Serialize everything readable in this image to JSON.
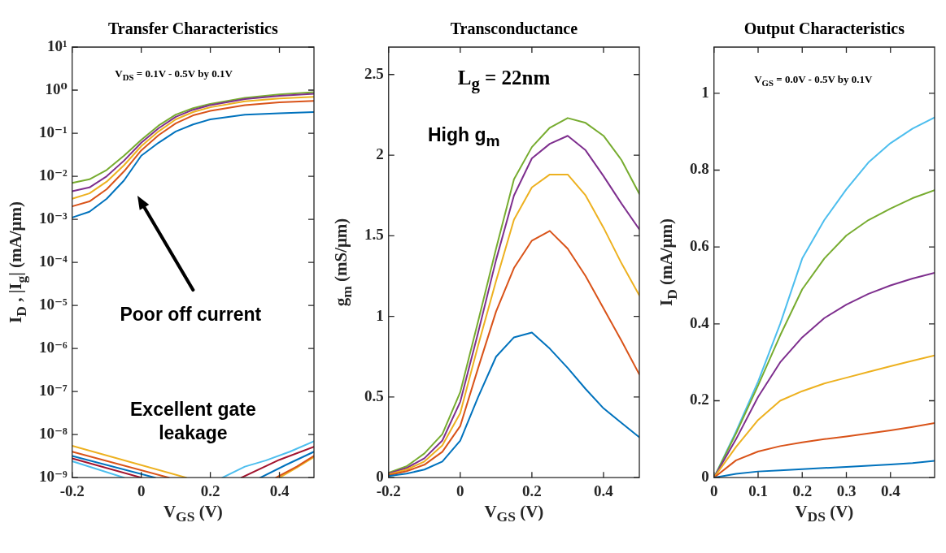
{
  "chart_data": [
    {
      "type": "line",
      "title": "Transfer Characteristics",
      "xlabel": "V$_{GS}$ (V)",
      "ylabel": "I$_{D}$ , |I$_{g}$| (mA/μm)",
      "log": "y",
      "xlim": [
        -0.2,
        0.5
      ],
      "xticks": [
        -0.2,
        0,
        0.2,
        0.4
      ],
      "ylim": [
        1e-09,
        10
      ],
      "yticks": [
        {
          "value": 1e-09,
          "label": "10⁻⁹"
        },
        {
          "value": 1e-08,
          "label": "10⁻⁸"
        },
        {
          "value": 1e-07,
          "label": "10⁻⁷"
        },
        {
          "value": 1e-06,
          "label": "10⁻⁶"
        },
        {
          "value": 1e-05,
          "label": "10⁻⁵"
        },
        {
          "value": 0.0001,
          "label": "10⁻⁴"
        },
        {
          "value": 0.001,
          "label": "10⁻³"
        },
        {
          "value": 0.01,
          "label": "10⁻²"
        },
        {
          "value": 0.1,
          "label": "10⁻¹"
        },
        {
          "value": 1,
          "label": "10⁰"
        },
        {
          "value": 10,
          "label": "10¹"
        }
      ],
      "annotations": [
        "V$_{DS}$ = 0.1V - 0.5V by 0.1V",
        "Poor off current",
        "Excellent gate leakage"
      ],
      "series": [
        {
          "color": "#0072bd",
          "x": [
            -0.2,
            -0.15,
            -0.1,
            -0.05,
            0,
            0.05,
            0.1,
            0.15,
            0.2,
            0.3,
            0.4,
            0.5
          ],
          "values": [
            0.0011,
            0.0015,
            0.003,
            0.008,
            0.03,
            0.06,
            0.11,
            0.16,
            0.21,
            0.27,
            0.29,
            0.31
          ]
        },
        {
          "color": "#d95319",
          "x": [
            -0.2,
            -0.15,
            -0.1,
            -0.05,
            0,
            0.05,
            0.1,
            0.15,
            0.2,
            0.3,
            0.4,
            0.5
          ],
          "values": [
            0.002,
            0.0026,
            0.005,
            0.013,
            0.04,
            0.09,
            0.17,
            0.26,
            0.33,
            0.45,
            0.52,
            0.56
          ]
        },
        {
          "color": "#edb120",
          "x": [
            -0.2,
            -0.15,
            -0.1,
            -0.05,
            0,
            0.05,
            0.1,
            0.15,
            0.2,
            0.3,
            0.4,
            0.5
          ],
          "values": [
            0.003,
            0.004,
            0.0075,
            0.018,
            0.05,
            0.11,
            0.21,
            0.31,
            0.4,
            0.55,
            0.64,
            0.7
          ]
        },
        {
          "color": "#7e2f8e",
          "x": [
            -0.2,
            -0.15,
            -0.1,
            -0.05,
            0,
            0.05,
            0.1,
            0.15,
            0.2,
            0.3,
            0.4,
            0.5
          ],
          "values": [
            0.0045,
            0.0055,
            0.01,
            0.023,
            0.06,
            0.13,
            0.24,
            0.35,
            0.45,
            0.62,
            0.74,
            0.82
          ]
        },
        {
          "color": "#77ac30",
          "x": [
            -0.2,
            -0.15,
            -0.1,
            -0.05,
            0,
            0.05,
            0.1,
            0.15,
            0.2,
            0.3,
            0.4,
            0.5
          ],
          "values": [
            0.007,
            0.0085,
            0.014,
            0.03,
            0.07,
            0.15,
            0.27,
            0.38,
            0.48,
            0.66,
            0.8,
            0.9
          ]
        },
        {
          "color": "#4dbeee",
          "x": [
            -0.2,
            -0.05,
            0.1,
            0.235,
            0.3,
            0.36,
            0.43,
            0.5
          ],
          "values": [
            2.4e-09,
            1e-09,
            null,
            1e-09,
            1.8e-09,
            2.5e-09,
            4e-09,
            7e-09
          ]
        },
        {
          "color": "#a2142f",
          "x": [
            -0.2,
            0,
            0.15,
            0.29,
            0.4,
            0.5
          ],
          "values": [
            2.8e-09,
            1e-09,
            null,
            1e-09,
            2.6e-09,
            5.2e-09
          ]
        },
        {
          "color": "#0072bd",
          "x": [
            -0.2,
            0.04,
            0.2,
            0.345,
            0.42,
            0.5
          ],
          "values": [
            3.2e-09,
            1e-09,
            null,
            1e-09,
            2e-09,
            4e-09
          ]
        },
        {
          "color": "#d95319",
          "x": [
            -0.2,
            0.08,
            0.25,
            0.39,
            0.45,
            0.5
          ],
          "values": [
            4e-09,
            1e-09,
            null,
            1e-09,
            1.8e-09,
            3.2e-09
          ]
        },
        {
          "color": "#edb120",
          "x": [
            -0.2,
            0.13,
            0.3,
            0.4,
            0.45,
            0.5
          ],
          "values": [
            5.5e-09,
            1e-09,
            null,
            1e-09,
            1.7e-09,
            3e-09
          ]
        }
      ]
    },
    {
      "type": "line",
      "title": "Transconductance",
      "xlabel": "V$_{GS}$ (V)",
      "ylabel": "g$_{m}$ (mS/μm)",
      "xlim": [
        -0.2,
        0.5
      ],
      "xticks": [
        -0.2,
        0,
        0.2,
        0.4
      ],
      "ylim": [
        0,
        2.67
      ],
      "yticks": [
        0,
        0.5,
        1,
        1.5,
        2,
        2.5
      ],
      "annotations": [
        "L$_{g}$ = 22nm",
        "High g$_{m}$"
      ],
      "x": [
        -0.2,
        -0.15,
        -0.1,
        -0.05,
        0,
        0.05,
        0.1,
        0.15,
        0.2,
        0.25,
        0.3,
        0.35,
        0.4,
        0.45,
        0.5
      ],
      "series": [
        {
          "color": "#0072bd",
          "values": [
            0.01,
            0.025,
            0.05,
            0.1,
            0.23,
            0.5,
            0.75,
            0.87,
            0.9,
            0.8,
            0.68,
            0.55,
            0.43,
            0.34,
            0.25
          ]
        },
        {
          "color": "#d95319",
          "values": [
            0.015,
            0.04,
            0.08,
            0.16,
            0.32,
            0.68,
            1.03,
            1.3,
            1.47,
            1.53,
            1.42,
            1.25,
            1.05,
            0.85,
            0.64
          ]
        },
        {
          "color": "#edb120",
          "values": [
            0.02,
            0.05,
            0.1,
            0.2,
            0.4,
            0.82,
            1.22,
            1.6,
            1.8,
            1.88,
            1.88,
            1.75,
            1.55,
            1.33,
            1.13
          ]
        },
        {
          "color": "#7e2f8e",
          "values": [
            0.025,
            0.06,
            0.12,
            0.23,
            0.47,
            0.9,
            1.35,
            1.75,
            1.98,
            2.07,
            2.12,
            2.03,
            1.87,
            1.7,
            1.54
          ]
        },
        {
          "color": "#77ac30",
          "values": [
            0.03,
            0.07,
            0.15,
            0.27,
            0.53,
            0.97,
            1.42,
            1.85,
            2.05,
            2.17,
            2.23,
            2.2,
            2.12,
            1.97,
            1.76
          ]
        }
      ]
    },
    {
      "type": "line",
      "title": "Output Characteristics",
      "xlabel": "V$_{DS}$ (V)",
      "ylabel": "I$_{D}$ (mA/μm)",
      "xlim": [
        0,
        0.5
      ],
      "xticks": [
        0,
        0.1,
        0.2,
        0.3,
        0.4
      ],
      "ylim": [
        0,
        1.12
      ],
      "yticks": [
        0,
        0.2,
        0.4,
        0.6,
        0.8,
        1
      ],
      "annotations": [
        "V$_{GS}$ = 0.0V - 0.5V by 0.1V"
      ],
      "x": [
        0,
        0.05,
        0.1,
        0.15,
        0.2,
        0.25,
        0.3,
        0.35,
        0.4,
        0.45,
        0.5
      ],
      "series": [
        {
          "color": "#0072bd",
          "values": [
            0,
            0.01,
            0.016,
            0.019,
            0.022,
            0.025,
            0.028,
            0.031,
            0.034,
            0.038,
            0.044
          ]
        },
        {
          "color": "#d95319",
          "values": [
            0,
            0.045,
            0.068,
            0.082,
            0.092,
            0.1,
            0.107,
            0.115,
            0.123,
            0.132,
            0.142
          ]
        },
        {
          "color": "#edb120",
          "values": [
            0,
            0.08,
            0.15,
            0.2,
            0.225,
            0.245,
            0.26,
            0.275,
            0.29,
            0.304,
            0.318
          ]
        },
        {
          "color": "#7e2f8e",
          "values": [
            0,
            0.1,
            0.21,
            0.3,
            0.365,
            0.415,
            0.45,
            0.478,
            0.5,
            0.518,
            0.533
          ]
        },
        {
          "color": "#77ac30",
          "values": [
            0,
            0.115,
            0.24,
            0.37,
            0.49,
            0.57,
            0.63,
            0.67,
            0.7,
            0.727,
            0.748
          ]
        },
        {
          "color": "#4dbeee",
          "values": [
            0,
            0.12,
            0.25,
            0.4,
            0.57,
            0.67,
            0.75,
            0.82,
            0.87,
            0.908,
            0.937
          ]
        }
      ]
    }
  ]
}
